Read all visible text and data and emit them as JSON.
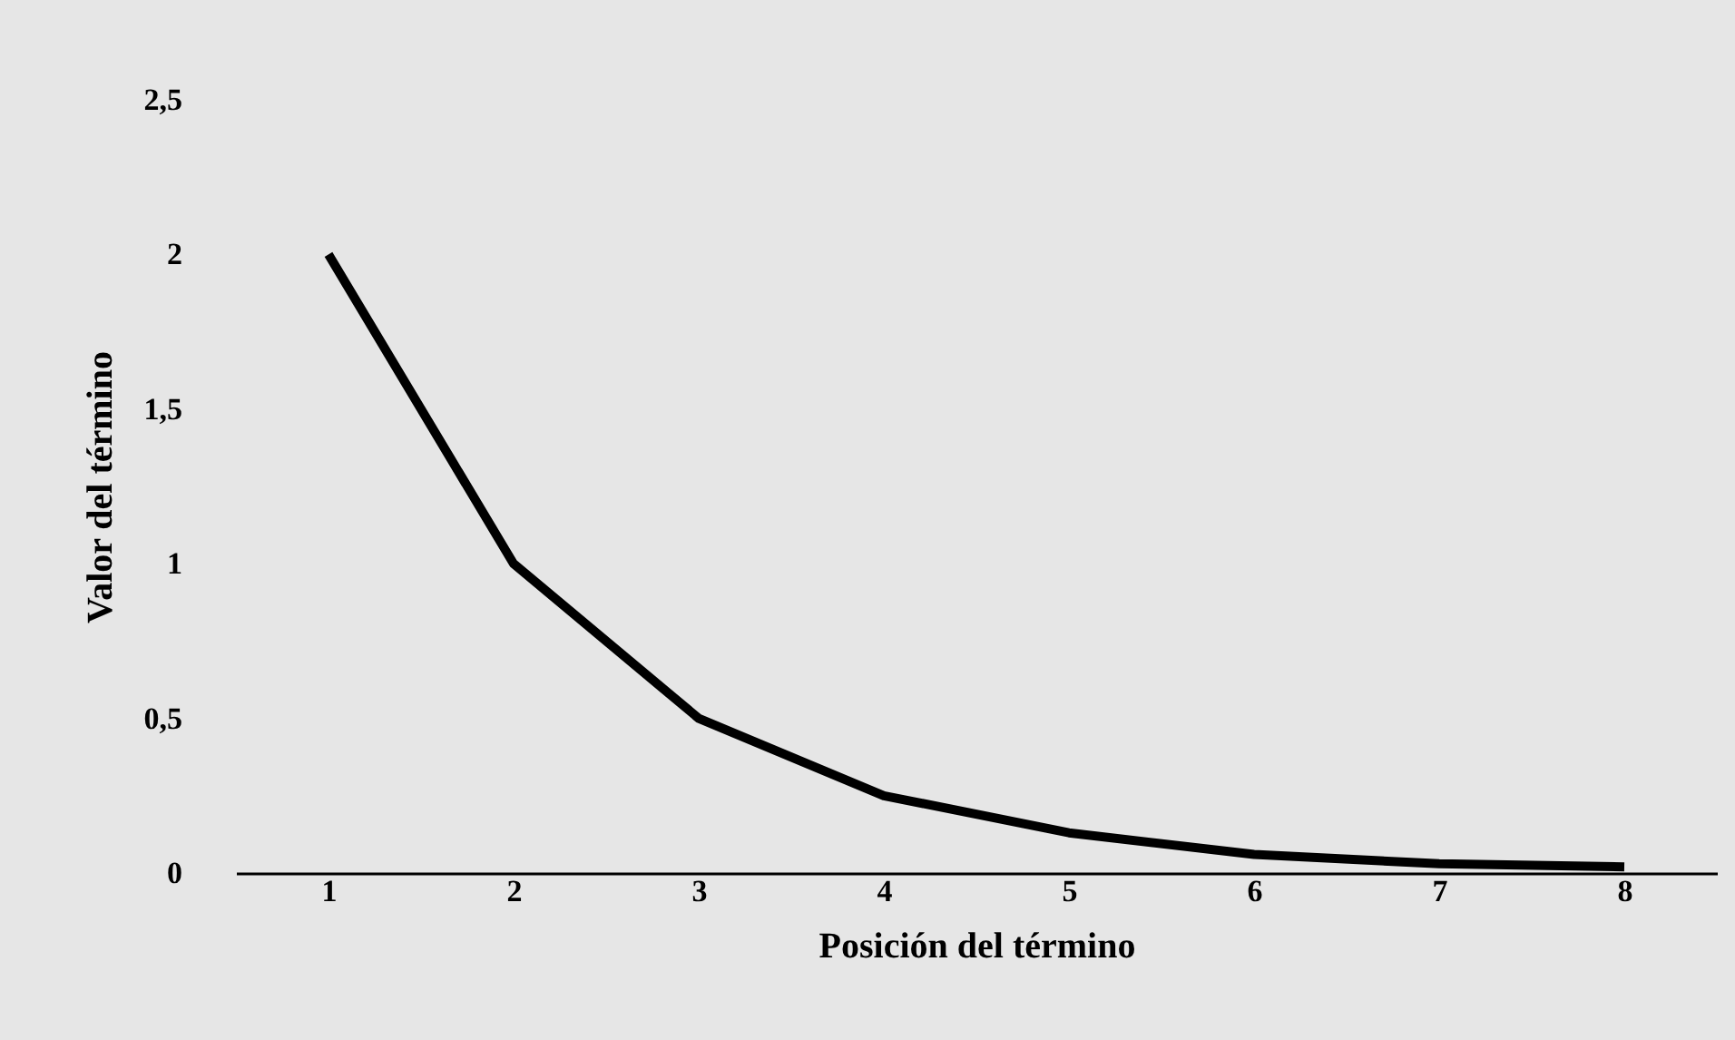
{
  "chart_data": {
    "type": "line",
    "xlabel": "Posición del término",
    "ylabel": "Valor del término",
    "categories": [
      "1",
      "2",
      "3",
      "4",
      "5",
      "6",
      "7",
      "8"
    ],
    "series": [
      {
        "color": "#000000",
        "values": [
          2,
          1,
          0.5,
          0.25,
          0.13,
          0.06,
          0.03,
          0.02
        ]
      }
    ],
    "ylim": [
      0,
      2.5
    ],
    "yticks": [
      0,
      {
        "value": 0.5,
        "label": "0,5"
      },
      1,
      {
        "value": 1.5,
        "label": "1,5"
      },
      2,
      {
        "value": 2.5,
        "label": "2,5"
      }
    ],
    "grid": false,
    "legend": false,
    "marker": "none",
    "line_style": "solid"
  }
}
